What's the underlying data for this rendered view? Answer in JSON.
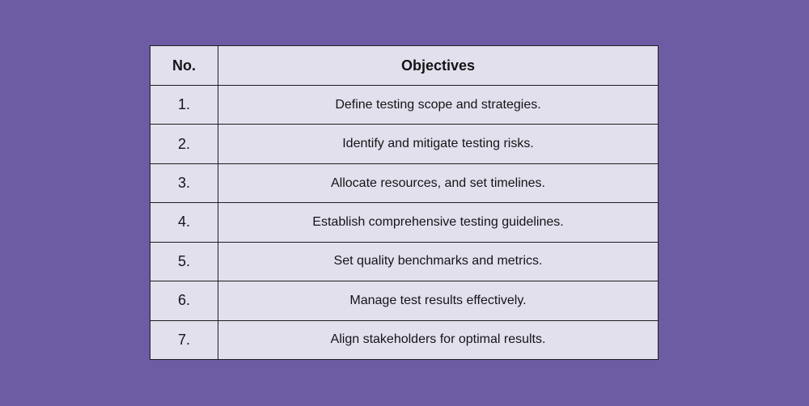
{
  "page": {
    "background_color": "#6d5ba4"
  },
  "table": {
    "border_color": "#1d1d1f",
    "cell_background": "#e3e0ed",
    "text_color": "#141417",
    "headers": {
      "no": "No.",
      "objectives": "Objectives"
    },
    "rows": [
      {
        "no": "1.",
        "objective": "Define testing scope and strategies."
      },
      {
        "no": "2.",
        "objective": "Identify and mitigate testing risks."
      },
      {
        "no": "3.",
        "objective": "Allocate resources, and set timelines."
      },
      {
        "no": "4.",
        "objective": "Establish comprehensive testing guidelines."
      },
      {
        "no": "5.",
        "objective": "Set quality benchmarks and metrics."
      },
      {
        "no": "6.",
        "objective": "Manage test results effectively."
      },
      {
        "no": "7.",
        "objective": "Align stakeholders for optimal results."
      }
    ]
  }
}
